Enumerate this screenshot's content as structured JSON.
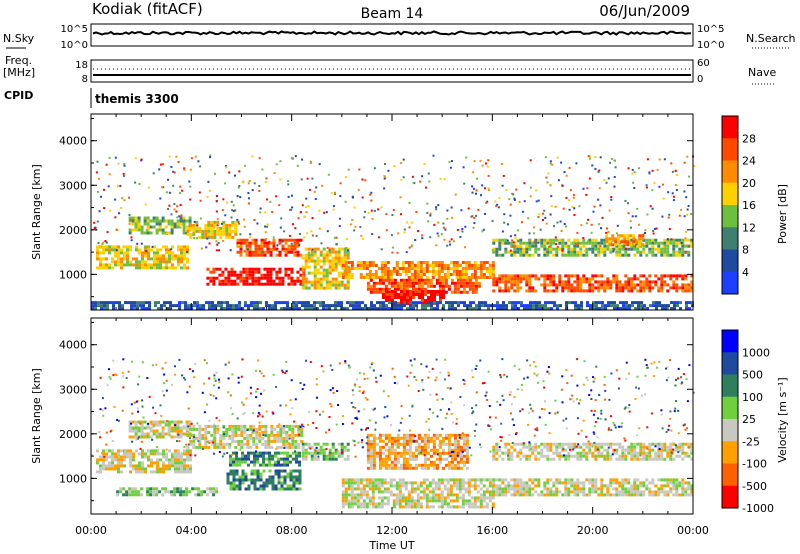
{
  "header": {
    "station": "Kodiak (fitACF)",
    "beam": "Beam 14",
    "date": "06/Jun/2009"
  },
  "strip_nsky": {
    "left_label": "N.Sky",
    "right_label": "N.Search",
    "tick_top": "10^5",
    "tick_bottom": "10^0",
    "right_tick_top": "10^5",
    "right_tick_bottom": "10^0"
  },
  "strip_freq": {
    "left_label_line1": "Freq.",
    "left_label_line2": "[MHz]",
    "tick_top": "18",
    "tick_bottom": "8",
    "right_label": "Nave",
    "right_tick_top": "60",
    "right_tick_bottom": "0"
  },
  "strip_cpid": {
    "left_label": "CPID",
    "value": "themis 3300"
  },
  "x_axis": {
    "label": "Time UT",
    "ticks": [
      "00:00",
      "04:00",
      "08:00",
      "12:00",
      "16:00",
      "20:00",
      "00:00"
    ]
  },
  "colors": {
    "power_scale": [
      "#1f3fff",
      "#1f4aa0",
      "#3f7f6f",
      "#6fbf3f",
      "#ffd000",
      "#ff8c00",
      "#ff4a00",
      "#ff0000"
    ],
    "velocity_scale": [
      "#0000ff",
      "#1f4aa0",
      "#2f7f5f",
      "#6fcf3f",
      "#c8c8c0",
      "#ffa000",
      "#ff6000",
      "#ff0000"
    ],
    "axis": "#000000"
  },
  "chart_data": [
    {
      "type": "heatmap",
      "name": "power_panel",
      "ylabel": "Slant Range [km]",
      "xlabel": "Time UT",
      "y_ticks": [
        "1000",
        "2000",
        "3000",
        "4000"
      ],
      "ylim": [
        200,
        4600
      ],
      "x_range_hours": [
        0,
        24
      ],
      "colorbar_label": "Power [dB]",
      "colorbar_ticks": [
        "4",
        "8",
        "12",
        "16",
        "20",
        "24",
        "28"
      ],
      "regions": [
        {
          "t0": 0.2,
          "t1": 3.8,
          "r0": 1150,
          "r1": 1650,
          "level": 4
        },
        {
          "t0": 1.5,
          "t1": 4.0,
          "r0": 1900,
          "r1": 2300,
          "level": 3
        },
        {
          "t0": 3.8,
          "t1": 5.8,
          "r0": 1800,
          "r1": 2200,
          "level": 4
        },
        {
          "t0": 5.8,
          "t1": 8.4,
          "r0": 1400,
          "r1": 1800,
          "level": 6
        },
        {
          "t0": 4.6,
          "t1": 8.5,
          "r0": 750,
          "r1": 1150,
          "level": 7
        },
        {
          "t0": 8.4,
          "t1": 10.2,
          "r0": 700,
          "r1": 1600,
          "level": 4
        },
        {
          "t0": 10.0,
          "t1": 16.0,
          "r0": 900,
          "r1": 1300,
          "level": 5
        },
        {
          "t0": 11.0,
          "t1": 15.5,
          "r0": 600,
          "r1": 900,
          "level": 6
        },
        {
          "t0": 11.6,
          "t1": 14.0,
          "r0": 350,
          "r1": 650,
          "level": 7
        },
        {
          "t0": 16.0,
          "t1": 24.0,
          "r0": 1400,
          "r1": 1800,
          "level": 3
        },
        {
          "t0": 16.0,
          "t1": 24.0,
          "r0": 650,
          "r1": 1000,
          "level": 6
        },
        {
          "t0": 20.5,
          "t1": 22.0,
          "r0": 1650,
          "r1": 1900,
          "level": 5
        },
        {
          "t0": 0.0,
          "t1": 24.0,
          "r0": 250,
          "r1": 400,
          "level": 1
        }
      ]
    },
    {
      "type": "heatmap",
      "name": "velocity_panel",
      "ylabel": "Slant Range [km]",
      "xlabel": "Time UT",
      "y_ticks": [
        "1000",
        "2000",
        "3000",
        "4000"
      ],
      "ylim": [
        200,
        4600
      ],
      "x_range_hours": [
        0,
        24
      ],
      "colorbar_label": "Velocity [m s⁻¹]",
      "colorbar_ticks": [
        "1000",
        "500",
        "100",
        "25",
        "-25",
        "-100",
        "-500",
        "-1000"
      ],
      "regions": [
        {
          "t0": 0.2,
          "t1": 4.0,
          "r0": 1150,
          "r1": 1650,
          "level": 4
        },
        {
          "t0": 1.5,
          "t1": 4.0,
          "r0": 1900,
          "r1": 2300,
          "level": 4
        },
        {
          "t0": 3.8,
          "t1": 8.4,
          "r0": 1700,
          "r1": 2200,
          "level": 4
        },
        {
          "t0": 5.5,
          "t1": 8.3,
          "r0": 1300,
          "r1": 1600,
          "level": 2
        },
        {
          "t0": 5.4,
          "t1": 8.3,
          "r0": 750,
          "r1": 1200,
          "level": 2
        },
        {
          "t0": 1.0,
          "t1": 5.0,
          "r0": 600,
          "r1": 800,
          "level": 3
        },
        {
          "t0": 8.4,
          "t1": 10.2,
          "r0": 1400,
          "r1": 1800,
          "level": 3
        },
        {
          "t0": 11.0,
          "t1": 15.0,
          "r0": 1200,
          "r1": 2000,
          "level": 5
        },
        {
          "t0": 10.0,
          "t1": 16.0,
          "r0": 350,
          "r1": 1000,
          "level": 4
        },
        {
          "t0": 16.0,
          "t1": 24.0,
          "r0": 1400,
          "r1": 1800,
          "level": 4
        },
        {
          "t0": 16.0,
          "t1": 24.0,
          "r0": 650,
          "r1": 1000,
          "level": 4
        }
      ]
    }
  ]
}
